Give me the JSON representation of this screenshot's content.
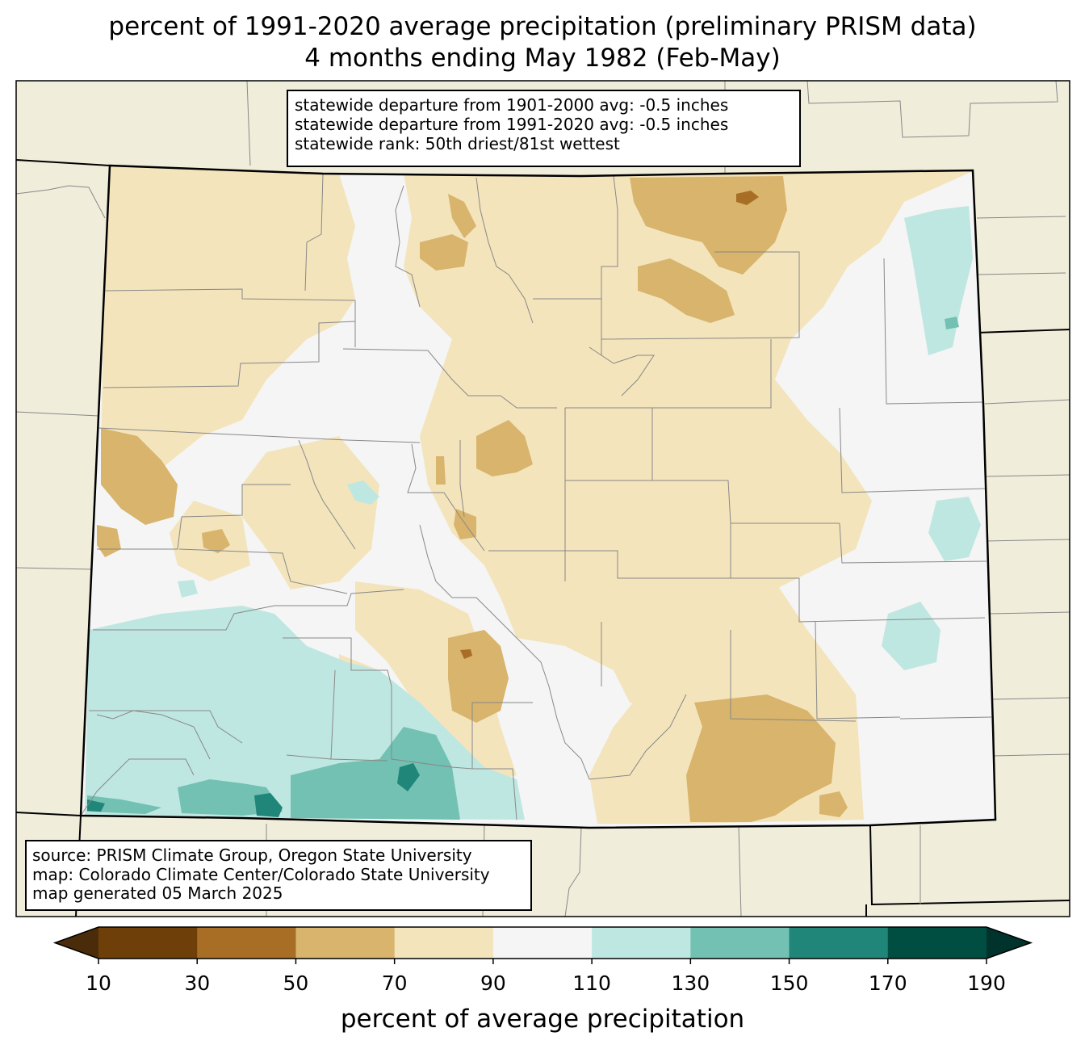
{
  "title": {
    "line1": "percent of 1991-2020 average precipitation (preliminary PRISM data)",
    "line2": "4 months ending May 1982 (Feb-May)"
  },
  "stats": {
    "line1": "statewide departure from 1901-2000 avg: -0.5 inches",
    "line2": "statewide departure from 1991-2020 avg: -0.5 inches",
    "line3": "statewide rank: 50th driest/81st wettest"
  },
  "source": {
    "line1": "source: PRISM Climate Group, Oregon State University",
    "line2": "map: Colorado Climate Center/Colorado State University",
    "line3": "map generated 05 March 2025"
  },
  "legend": {
    "label": "percent of average precipitation",
    "ticks": [
      "10",
      "30",
      "50",
      "70",
      "90",
      "110",
      "130",
      "150",
      "170",
      "190"
    ],
    "colors": [
      "#4a2c0a",
      "#6f3f0a",
      "#a86e26",
      "#d8b46c",
      "#f3e4bc",
      "#f4f5f4",
      "#bfe7e2",
      "#72c1b3",
      "#20867a",
      "#004d41",
      "#00332b"
    ]
  },
  "colors": {
    "background": "#f0eddb",
    "state_border": "#000000",
    "county_lines": "#808080"
  }
}
